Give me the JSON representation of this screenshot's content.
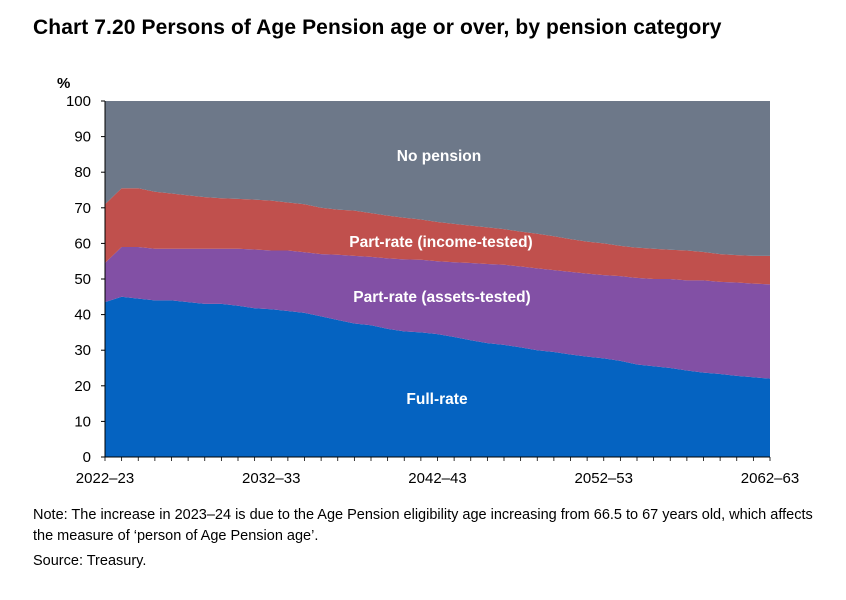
{
  "title": "Chart 7.20  Persons of Age Pension age or over, by pension category",
  "note": "Note: The increase in 2023–24 is due to the Age Pension eligibility age increasing from 66.5 to 67 years old, which affects the measure of ‘person of Age Pension age’.",
  "source": "Source: Treasury.",
  "chart_data": {
    "type": "area",
    "stacked": true,
    "ylabel": "%",
    "ylim": [
      0,
      100
    ],
    "yticks": [
      0,
      10,
      20,
      30,
      40,
      50,
      60,
      70,
      80,
      90,
      100
    ],
    "x_tick_labels": [
      "2022–23",
      "2032–33",
      "2042–43",
      "2052–53",
      "2062–63"
    ],
    "x_tick_positions": [
      0,
      10,
      20,
      30,
      40
    ],
    "x": [
      0,
      1,
      2,
      3,
      4,
      5,
      6,
      7,
      8,
      9,
      10,
      11,
      12,
      13,
      14,
      15,
      16,
      17,
      18,
      19,
      20,
      21,
      22,
      23,
      24,
      25,
      26,
      27,
      28,
      29,
      30,
      31,
      32,
      33,
      34,
      35,
      36,
      37,
      38,
      39,
      40
    ],
    "series": [
      {
        "name": "Full-rate",
        "color": "#0563C1",
        "values": [
          43.5,
          45,
          44.5,
          44,
          44,
          43.5,
          43,
          43,
          42.5,
          41.8,
          41.5,
          41,
          40.5,
          39.5,
          38.5,
          37.5,
          37,
          36,
          35.3,
          35,
          34.5,
          33.7,
          32.8,
          32,
          31.5,
          30.8,
          30,
          29.5,
          28.8,
          28.2,
          27.7,
          27,
          26,
          25.5,
          25,
          24.3,
          23.7,
          23.3,
          22.8,
          22.4,
          22
        ]
      },
      {
        "name": "Part-rate (assets-tested)",
        "color": "#8250A5",
        "values": [
          11,
          14,
          14.5,
          14.5,
          14.5,
          15,
          15.5,
          15.5,
          16,
          16.5,
          16.5,
          17,
          17,
          17.5,
          18.3,
          19,
          19.2,
          19.8,
          20.2,
          20.4,
          20.5,
          21,
          21.7,
          22.2,
          22.5,
          22.7,
          23,
          23,
          23.2,
          23.3,
          23.4,
          23.8,
          24.3,
          24.5,
          25,
          25.3,
          25.9,
          25.9,
          26.2,
          26.3,
          26.5
        ]
      },
      {
        "name": "Part-rate (income-tested)",
        "color": "#C0504D",
        "values": [
          16.5,
          16.5,
          16.5,
          16,
          15.5,
          15,
          14.5,
          14.2,
          14,
          14,
          14,
          13.5,
          13.5,
          13,
          12.7,
          12.7,
          12.3,
          12,
          11.7,
          11.3,
          11,
          10.8,
          10.5,
          10.3,
          10,
          9.8,
          9.7,
          9.5,
          9.2,
          9,
          8.9,
          8.5,
          8.5,
          8.5,
          8.2,
          8.4,
          8,
          7.8,
          7.7,
          7.8,
          8
        ]
      },
      {
        "name": "No pension",
        "color": "#6D7889",
        "values": [
          29,
          24.5,
          24.5,
          25.5,
          26,
          26.5,
          27,
          27.3,
          27.5,
          27.7,
          28,
          28.5,
          29,
          30,
          30.5,
          30.8,
          31.5,
          32.2,
          32.8,
          33.3,
          34,
          34.5,
          35,
          35.5,
          36,
          36.7,
          37.3,
          38,
          38.8,
          39.5,
          40,
          40.7,
          41.2,
          41.5,
          41.8,
          42,
          42.4,
          43,
          43.3,
          43.5,
          43.5
        ]
      }
    ],
    "area_labels": [
      "No pension",
      "Part-rate (income-tested)",
      "Part-rate (assets-tested)",
      "Full-rate"
    ],
    "legend": "inline"
  }
}
